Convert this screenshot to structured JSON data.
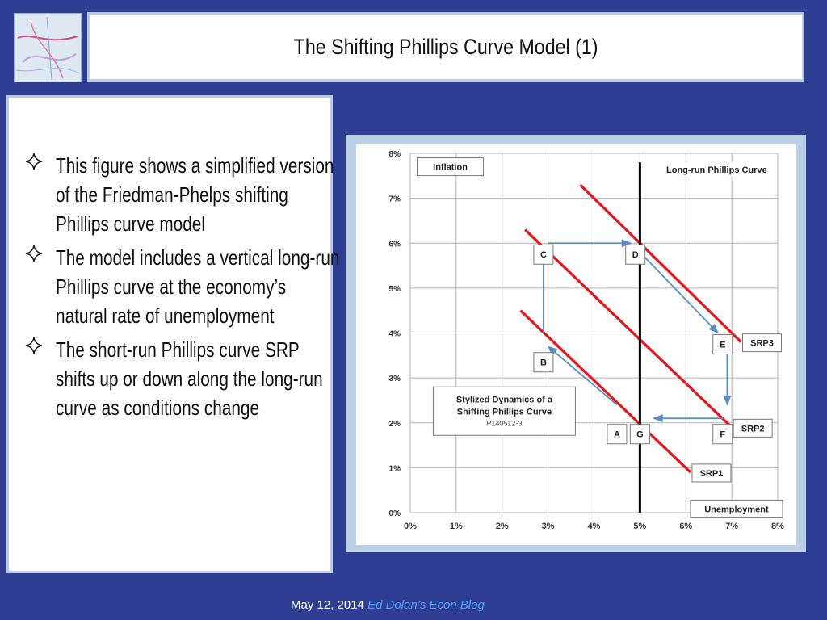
{
  "slide": {
    "title": "The Shifting Phillips Curve Model (1)",
    "bullets": [
      "This figure shows a simplified version of the Friedman-Phelps shifting Phillips curve model",
      "The model includes a vertical long-run Phillips curve at the economy’s natural rate of unemployment",
      "The short-run Phillips curve SRP shifts up or down along the long-run curve as conditions change"
    ],
    "footer": {
      "date": "May 12, 2014",
      "link_text": "Ed Dolan’s Econ Blog"
    }
  },
  "colors": {
    "background": "#2f3d92",
    "srp_lines": "#e8141b",
    "arrows": "#5b8ec9",
    "lrpc": "#000000",
    "link": "#4aa3ff"
  },
  "chart_data": {
    "type": "line",
    "title": "Stylized Dynamics of a Shifting Phillips Curve",
    "subtitle": "P140512-3",
    "xlabel": "Unemployment",
    "ylabel": "Inflation",
    "xlim": [
      0,
      8
    ],
    "ylim": [
      0,
      8
    ],
    "x_ticks": [
      "0%",
      "1%",
      "2%",
      "3%",
      "4%",
      "5%",
      "6%",
      "7%",
      "8%"
    ],
    "y_ticks": [
      "0%",
      "1%",
      "2%",
      "3%",
      "4%",
      "5%",
      "6%",
      "7%",
      "8%"
    ],
    "grid": true,
    "series": [
      {
        "name": "SRP1",
        "points": [
          [
            2.4,
            4.5
          ],
          [
            6.1,
            0.9
          ]
        ]
      },
      {
        "name": "SRP2",
        "points": [
          [
            2.5,
            6.3
          ],
          [
            7.0,
            1.9
          ]
        ]
      },
      {
        "name": "SRP3",
        "points": [
          [
            3.7,
            7.3
          ],
          [
            7.2,
            3.8
          ]
        ]
      }
    ],
    "vertical_line": {
      "name": "Long-run Phillips Curve",
      "x": 5,
      "y_from": 0,
      "y_to": 7.8
    },
    "points": [
      {
        "label": "A",
        "x": 4.5,
        "y": 2.0
      },
      {
        "label": "B",
        "x": 2.9,
        "y": 3.6
      },
      {
        "label": "C",
        "x": 2.9,
        "y": 6.0
      },
      {
        "label": "D",
        "x": 4.9,
        "y": 6.0
      },
      {
        "label": "E",
        "x": 6.8,
        "y": 4.0
      },
      {
        "label": "F",
        "x": 6.8,
        "y": 2.0
      },
      {
        "label": "G",
        "x": 5.0,
        "y": 2.0
      }
    ],
    "arrows": [
      {
        "from": [
          4.5,
          2.4
        ],
        "to": [
          3.0,
          3.7
        ]
      },
      {
        "from": [
          2.9,
          4.0
        ],
        "to": [
          2.9,
          5.8
        ]
      },
      {
        "from": [
          3.0,
          6.0
        ],
        "to": [
          4.8,
          6.0
        ]
      },
      {
        "from": [
          5.0,
          5.8
        ],
        "to": [
          6.7,
          4.0
        ]
      },
      {
        "from": [
          6.9,
          3.8
        ],
        "to": [
          6.9,
          2.4
        ]
      },
      {
        "from": [
          6.8,
          2.1
        ],
        "to": [
          5.3,
          2.1
        ]
      }
    ]
  }
}
